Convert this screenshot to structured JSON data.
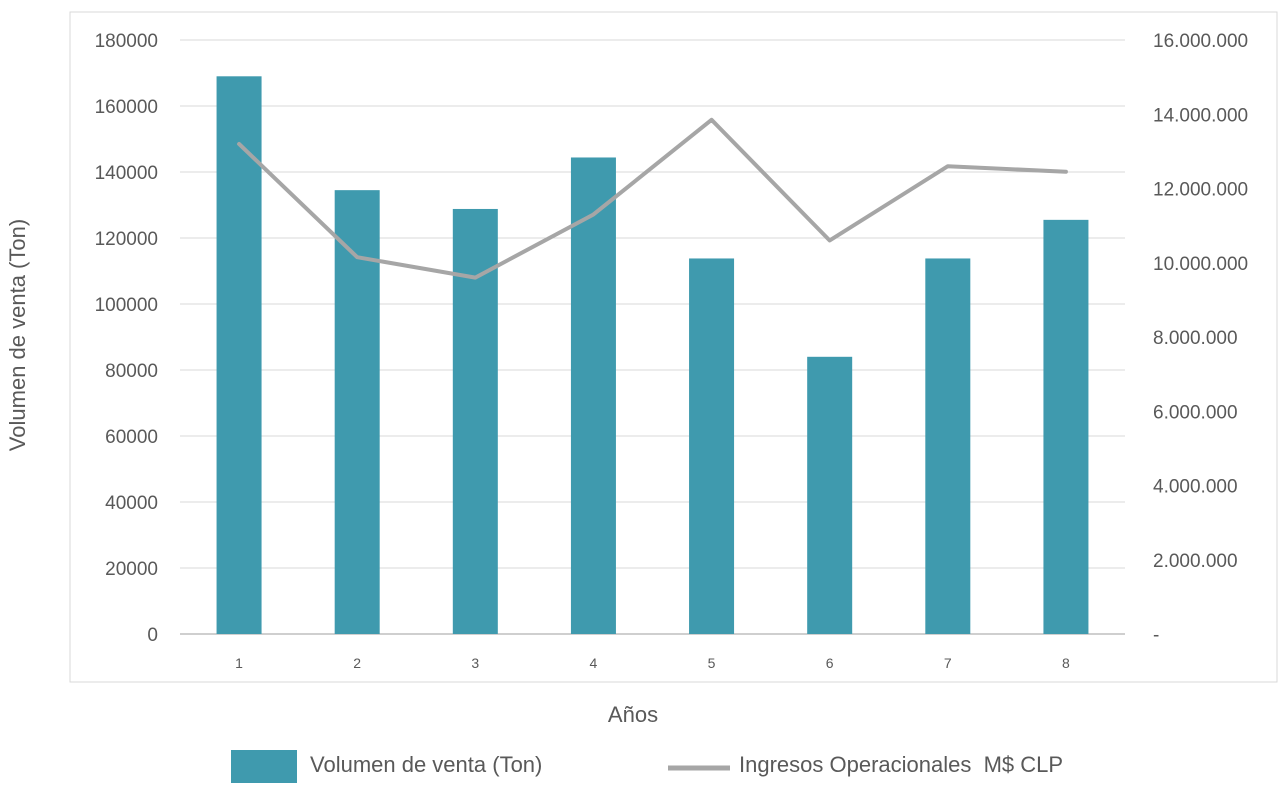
{
  "chart_data": {
    "type": "bar",
    "categories": [
      "1",
      "2",
      "3",
      "4",
      "5",
      "6",
      "7",
      "8"
    ],
    "series": [
      {
        "name": "Volumen de venta (Ton)",
        "type": "bar",
        "axis": "left",
        "color": "#3f9aae",
        "values": [
          169000,
          134500,
          128800,
          144400,
          113800,
          84000,
          113800,
          125500
        ]
      },
      {
        "name": "Ingresos Operacionales  M$ CLP",
        "type": "line",
        "axis": "right",
        "color": "#a6a6a6",
        "values": [
          13200000,
          10150000,
          9600000,
          11300000,
          13850000,
          10600000,
          12600000,
          12450000
        ]
      }
    ],
    "xlabel": "Años",
    "ylabel": "Volumen de venta (Ton)",
    "ylim": [
      0,
      180000
    ],
    "y2lim": [
      0,
      16000000
    ],
    "left_ticks": [
      "0",
      "20000",
      "40000",
      "60000",
      "80000",
      "100000",
      "120000",
      "140000",
      "160000",
      "180000"
    ],
    "right_ticks": [
      "-",
      "2.000.000",
      "4.000.000",
      "6.000.000",
      "8.000.000",
      "10.000.000",
      "12.000.000",
      "14.000.000",
      "16.000.000"
    ],
    "grid": true,
    "legend_position": "bottom"
  }
}
